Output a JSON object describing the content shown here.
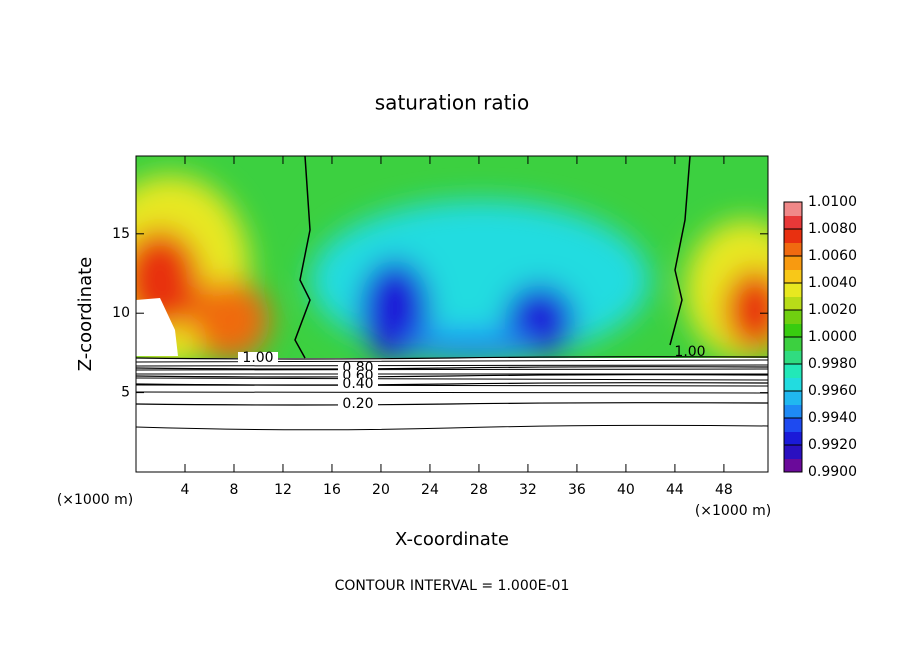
{
  "chart_data": {
    "type": "contour",
    "title": "saturation ratio",
    "xlabel": "X-coordinate",
    "ylabel": "Z-coordinate",
    "xunit": "(×1000 m)",
    "footer": "CONTOUR INTERVAL = 1.000E-01",
    "xlim": [
      0,
      51.6
    ],
    "ylim": [
      0,
      19.9
    ],
    "xticks": [
      4,
      8,
      12,
      16,
      20,
      24,
      28,
      32,
      36,
      40,
      44,
      48
    ],
    "yticks": [
      5,
      10,
      15
    ],
    "colorbar": {
      "lim": [
        0.99,
        1.01
      ],
      "ticks": [
        {
          "value": 0.99,
          "label": "0.9900"
        },
        {
          "value": 0.992,
          "label": "0.9920"
        },
        {
          "value": 0.994,
          "label": "0.9940"
        },
        {
          "value": 0.996,
          "label": "0.9960"
        },
        {
          "value": 0.998,
          "label": "0.9980"
        },
        {
          "value": 1.0,
          "label": "1.0000"
        },
        {
          "value": 1.002,
          "label": "1.0020"
        },
        {
          "value": 1.004,
          "label": "1.0040"
        },
        {
          "value": 1.006,
          "label": "1.0060"
        },
        {
          "value": 1.008,
          "label": "1.0080"
        },
        {
          "value": 1.01,
          "label": "1.0100"
        }
      ],
      "colors": [
        "#6a0a9a",
        "#2a10c0",
        "#1a1ad8",
        "#1e4af0",
        "#1e8af5",
        "#20b8f0",
        "#22dce0",
        "#22e8b8",
        "#30dc80",
        "#3cd040",
        "#38cc10",
        "#70d010",
        "#b8dc18",
        "#e8e820",
        "#f8c818",
        "#f89a10",
        "#f06a10",
        "#e83010",
        "#e83838",
        "#f08888"
      ]
    },
    "contours": [
      {
        "value": 1.0,
        "label": "1.00"
      },
      {
        "value": 0.8,
        "label": "0.80"
      },
      {
        "value": 0.6,
        "label": "0.60"
      },
      {
        "value": 0.4,
        "label": "0.40"
      },
      {
        "value": 0.2,
        "label": "0.20"
      }
    ]
  }
}
